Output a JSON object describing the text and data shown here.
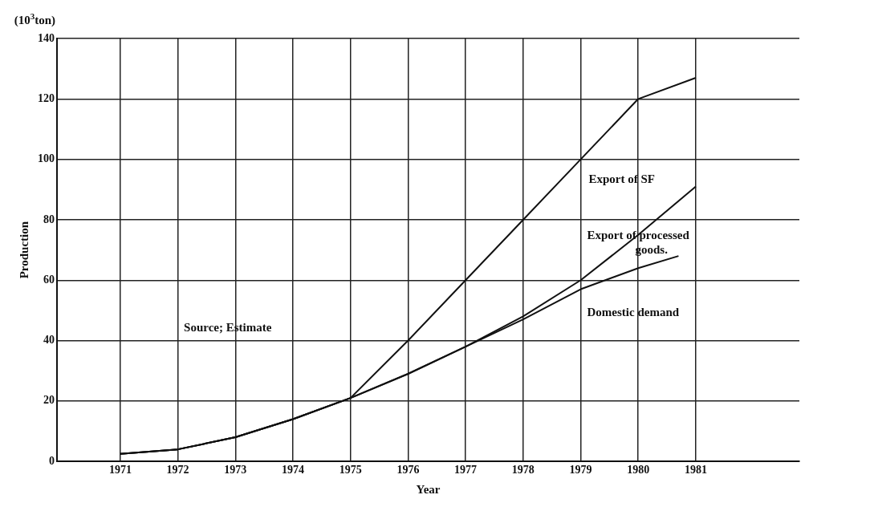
{
  "chart_data": {
    "type": "line",
    "xlabel": "Year",
    "ylabel": "Production",
    "annotations": [
      "(10$^{3}$ton)",
      "Source; Estimate"
    ],
    "x": [
      1971,
      1972,
      1973,
      1974,
      1975,
      1976,
      1977,
      1978,
      1979,
      1980,
      1981
    ],
    "series": [
      {
        "name": "Export of SF",
        "color": "#111111",
        "values": [
          2.5,
          4,
          8,
          14,
          21,
          40,
          60,
          80,
          100,
          120,
          127
        ]
      },
      {
        "name": "Export of processed goods.",
        "color": "#111111",
        "values": [
          2.5,
          4,
          8,
          14,
          21,
          29,
          38,
          48,
          60,
          75,
          91
        ]
      },
      {
        "name": "Domestic demand",
        "color": "#111111",
        "x": [
          1971,
          1972,
          1973,
          1974,
          1975,
          1976,
          1977,
          1978,
          1979,
          1980,
          1980.7
        ],
        "values": [
          2.5,
          4,
          8,
          14,
          21,
          29,
          38,
          47,
          57,
          64,
          68
        ]
      }
    ],
    "xlim": [
      1969.9,
      1982.8
    ],
    "xticks": [
      1971,
      1972,
      1973,
      1974,
      1975,
      1976,
      1977,
      1978,
      1979,
      1980,
      1981
    ],
    "ylim": [
      0,
      140
    ],
    "yticks": [
      0,
      20,
      40,
      60,
      80,
      100,
      120,
      140
    ],
    "grid": true,
    "legend": false,
    "marker": "none",
    "line_style": "solid"
  }
}
